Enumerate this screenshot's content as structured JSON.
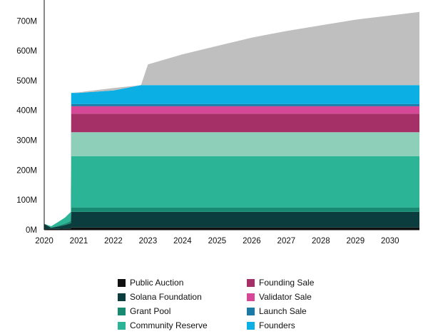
{
  "chart_data": {
    "type": "area",
    "stacked": true,
    "title": "",
    "xlabel": "",
    "ylabel": "",
    "x_ticks": [
      "2020",
      "2021",
      "2022",
      "2023",
      "2024",
      "2025",
      "2026",
      "2027",
      "2028",
      "2029",
      "2030"
    ],
    "y_ticks": [
      "0M",
      "100M",
      "200M",
      "300M",
      "400M",
      "500M",
      "600M",
      "700M"
    ],
    "xlim": [
      2020.0,
      2030.85
    ],
    "ylim": [
      0,
      770
    ],
    "grid": false,
    "legend_position": "bottom",
    "x": [
      2020.0,
      2020.2,
      2020.4,
      2020.6,
      2020.77,
      2020.78,
      2021.0,
      2022.0,
      2022.8,
      2023.0,
      2024.0,
      2025.0,
      2026.0,
      2027.0,
      2028.0,
      2029.0,
      2030.0,
      2030.85
    ],
    "series": [
      {
        "name": "Public Auction",
        "color": "#111111",
        "values": [
          2,
          3,
          3,
          4,
          4,
          8,
          8,
          8,
          8,
          8,
          8,
          8,
          8,
          8,
          8,
          8,
          8,
          8
        ]
      },
      {
        "name": "Solana Foundation",
        "color": "#0c3d3e",
        "values": [
          18,
          4,
          8,
          12,
          18,
          52,
          52,
          52,
          52,
          52,
          52,
          52,
          52,
          52,
          52,
          52,
          52,
          52
        ]
      },
      {
        "name": "Grant Pool",
        "color": "#178a71",
        "values": [
          0,
          1,
          3,
          5,
          8,
          15,
          15,
          15,
          15,
          15,
          15,
          15,
          15,
          15,
          15,
          15,
          15,
          15
        ]
      },
      {
        "name": "Community Reserve",
        "color": "#2bb596",
        "values": [
          0,
          4,
          12,
          20,
          30,
          172,
          172,
          172,
          172,
          172,
          172,
          172,
          172,
          172,
          172,
          172,
          172,
          172
        ]
      },
      {
        "name": "",
        "color": "#8dcfb8",
        "values": [
          0,
          0,
          0,
          0,
          0,
          80,
          80,
          80,
          80,
          80,
          80,
          80,
          80,
          80,
          80,
          80,
          80,
          80
        ]
      },
      {
        "name": "Founding Sale",
        "color": "#a52f67",
        "values": [
          0,
          0,
          0,
          0,
          0,
          62,
          62,
          62,
          62,
          62,
          62,
          62,
          62,
          62,
          62,
          62,
          62,
          62
        ]
      },
      {
        "name": "Validator Sale",
        "color": "#d64797",
        "values": [
          0,
          0,
          0,
          0,
          0,
          25,
          25,
          25,
          25,
          25,
          25,
          25,
          25,
          25,
          25,
          25,
          25,
          25
        ]
      },
      {
        "name": "Launch Sale",
        "color": "#1a7aa5",
        "values": [
          0,
          0,
          0,
          0,
          0,
          7,
          7,
          7,
          7,
          7,
          7,
          7,
          7,
          7,
          7,
          7,
          7,
          7
        ]
      },
      {
        "name": "Founders",
        "color": "#0bafe3",
        "values": [
          0,
          0,
          0,
          0,
          0,
          38,
          38,
          46,
          64,
          64,
          64,
          64,
          64,
          64,
          64,
          64,
          64,
          64
        ]
      },
      {
        "name": "",
        "color": "#bfbfbf",
        "values": [
          0,
          0,
          0,
          0,
          0,
          0,
          2,
          8,
          0,
          69,
          103,
          131,
          159,
          181,
          200,
          219,
          233,
          245
        ]
      }
    ]
  },
  "legend": {
    "items": [
      {
        "label": "Public Auction",
        "color": "#111111"
      },
      {
        "label": "Founding Sale",
        "color": "#a52f67"
      },
      {
        "label": "Solana Foundation",
        "color": "#0c3d3e"
      },
      {
        "label": "Validator Sale",
        "color": "#d64797"
      },
      {
        "label": "Grant Pool",
        "color": "#178a71"
      },
      {
        "label": "Launch Sale",
        "color": "#1a7aa5"
      },
      {
        "label": "Community Reserve",
        "color": "#2bb596"
      },
      {
        "label": "Founders",
        "color": "#0bafe3"
      }
    ]
  }
}
